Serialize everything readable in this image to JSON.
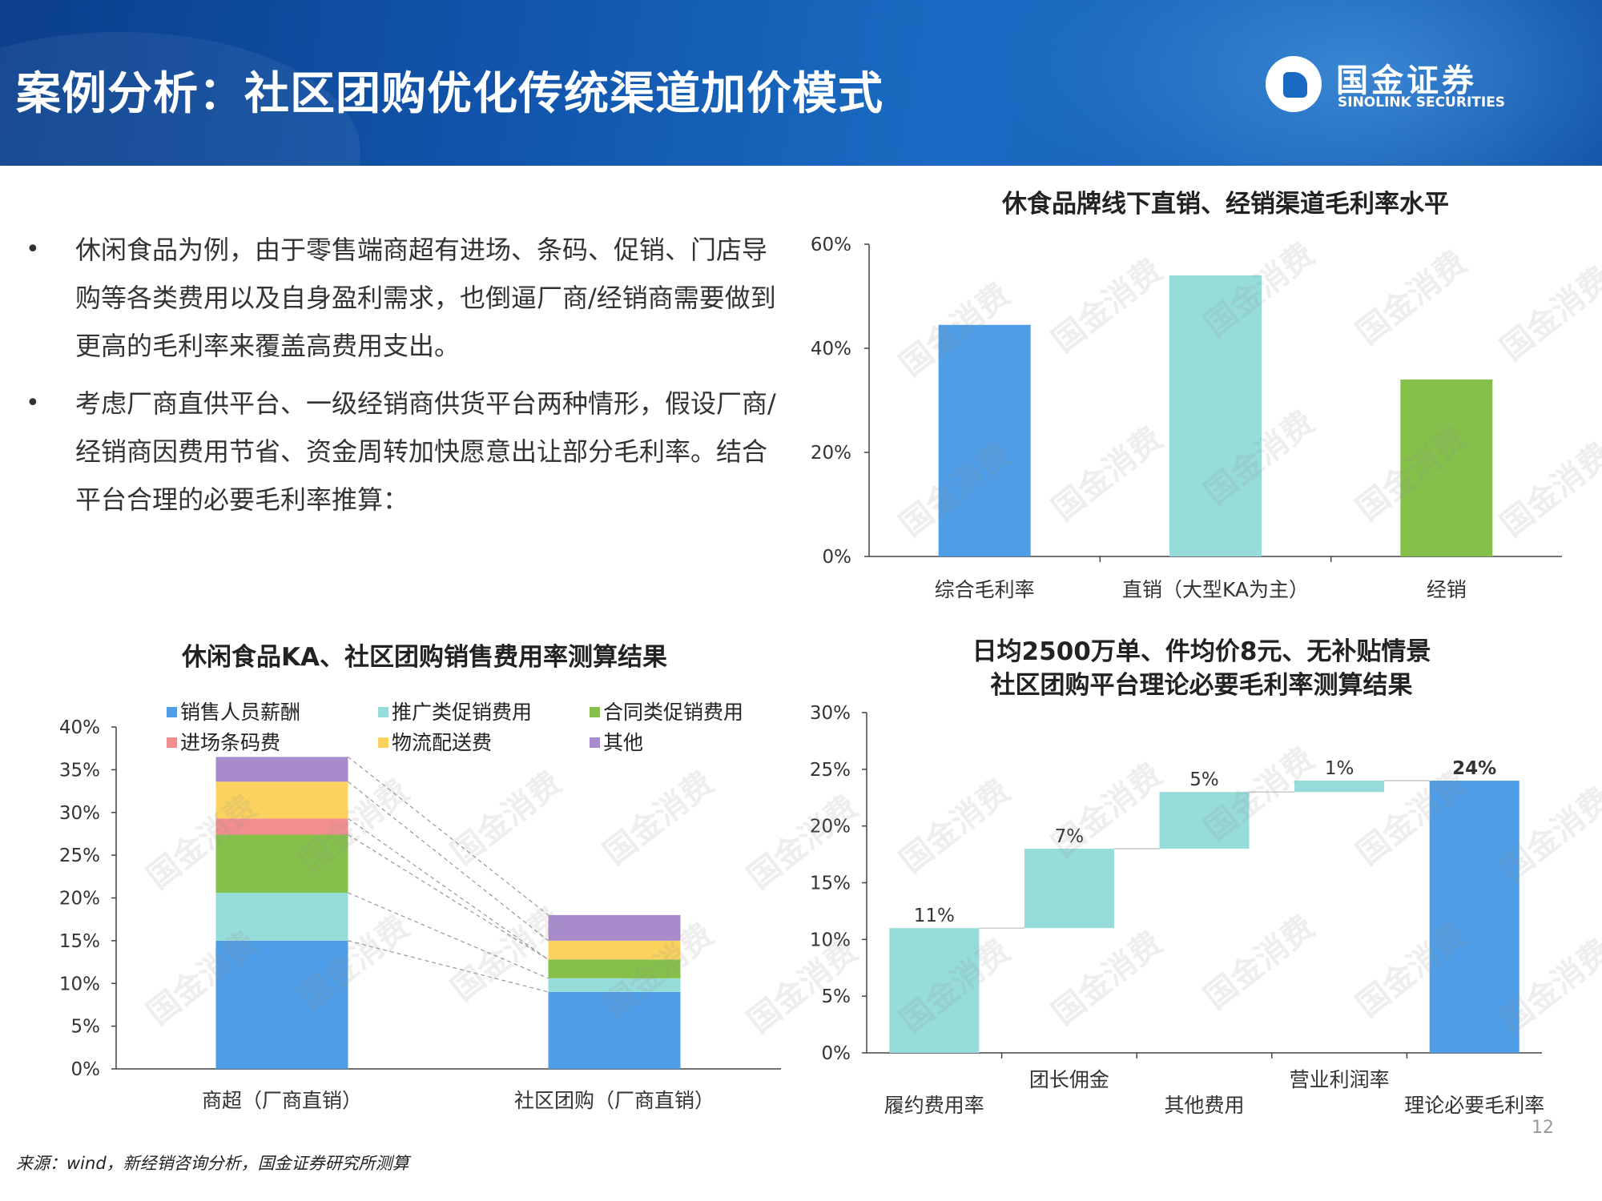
{
  "header": {
    "title": "案例分析：社区团购优化传统渠道加价模式",
    "logo_cn": "国金证券",
    "logo_en": "SINOLINK SECURITIES"
  },
  "bullets": [
    "休闲食品为例，由于零售端商超有进场、条码、促销、门店导购等各类费用以及自身盈利需求，也倒逼厂商/经销商需要做到更高的毛利率来覆盖高费用支出。",
    "考虑厂商直供平台、一级经销商供货平台两种情形，假设厂商/经销商因费用节省、资金周转加快愿意出让部分毛利率。结合平台合理的必要毛利率推算："
  ],
  "watermark": "国金消费",
  "footer": {
    "source": "来源：wind，新经销咨询分析，国金证券研究所测算",
    "page_number": "12"
  },
  "chart_data": [
    {
      "type": "bar",
      "title": "休食品牌线下直销、经销渠道毛利率水平",
      "categories": [
        "综合毛利率",
        "直销（大型KA为主）",
        "经销"
      ],
      "values": [
        44.5,
        54,
        34
      ],
      "ylim": [
        0,
        60
      ],
      "yticks": [
        "0%",
        "20%",
        "40%",
        "60%"
      ],
      "colors": [
        "#4f9de6",
        "#96dcd9",
        "#84c04a"
      ],
      "xlabel": "",
      "ylabel": "",
      "grid": false
    },
    {
      "type": "bar",
      "stacked": true,
      "title": "休闲食品KA、社区团购销售费用率测算结果",
      "categories": [
        "商超（厂商直销）",
        "社区团购（厂商直销）"
      ],
      "series": [
        {
          "name": "销售人员薪酬",
          "color": "#4f9de6",
          "values": [
            15,
            9
          ]
        },
        {
          "name": "推广类促销费用",
          "color": "#96dcd9",
          "values": [
            5.6,
            1.6
          ]
        },
        {
          "name": "合同类促销费用",
          "color": "#84c04a",
          "values": [
            6.8,
            2.2
          ]
        },
        {
          "name": "进场条码费",
          "color": "#f28e8e",
          "values": [
            1.9,
            0
          ]
        },
        {
          "name": "物流配送费",
          "color": "#fcd25e",
          "values": [
            4.3,
            2.2
          ]
        },
        {
          "name": "其他",
          "color": "#a78bcd",
          "values": [
            2.9,
            3.0
          ]
        }
      ],
      "ylim": [
        0,
        40
      ],
      "yticks": [
        "0%",
        "5%",
        "10%",
        "15%",
        "20%",
        "25%",
        "30%",
        "35%",
        "40%"
      ],
      "legend_position": "top",
      "connector_lines": true
    },
    {
      "type": "bar",
      "waterfall": true,
      "title": "日均2500万单、件均价8元、无补贴情景 社区团购平台理论必要毛利率测算结果",
      "title_lines": [
        "日均2500万单、件均价8元、无补贴情景",
        "社区团购平台理论必要毛利率测算结果"
      ],
      "categories": [
        "履约费用率",
        "团长佣金",
        "其他费用",
        "营业利润率",
        "理论必要毛利率"
      ],
      "values": [
        11,
        7,
        5,
        1,
        24
      ],
      "labels": [
        "11%",
        "7%",
        "5%",
        "1%",
        "24%"
      ],
      "is_total": [
        false,
        false,
        false,
        false,
        true
      ],
      "ylim": [
        0,
        30
      ],
      "yticks": [
        "0%",
        "5%",
        "10%",
        "15%",
        "20%",
        "25%",
        "30%"
      ],
      "colors": {
        "step": "#96dcd9",
        "total": "#4f9de6"
      }
    }
  ]
}
